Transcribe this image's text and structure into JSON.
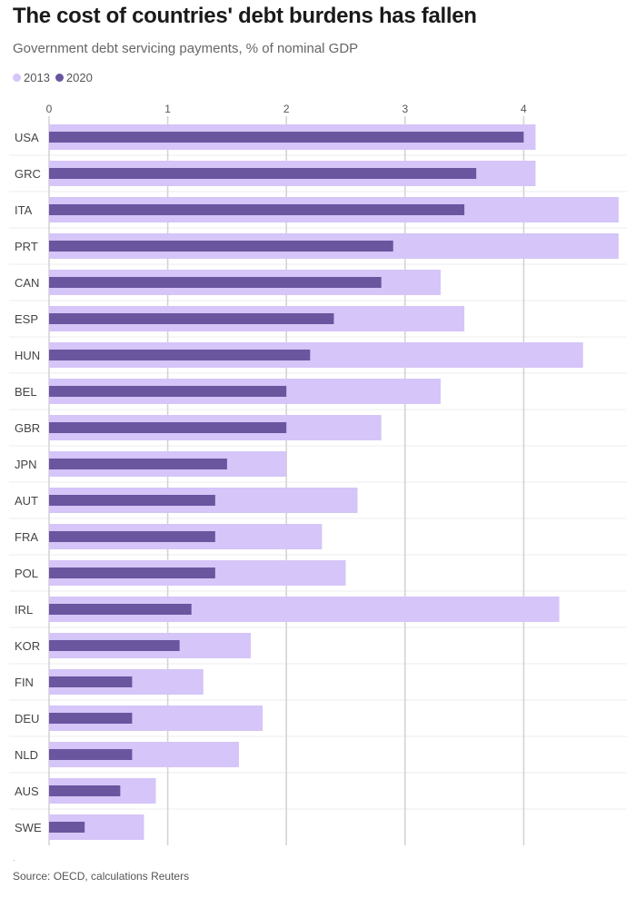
{
  "title": "The cost of countries' debt burdens has fallen",
  "subtitle": "Government debt servicing payments, % of nominal GDP",
  "legend": [
    {
      "label": "2013",
      "color": "#d5c5f8"
    },
    {
      "label": "2020",
      "color": "#6a559f"
    }
  ],
  "source": "Source: OECD, calculations Reuters",
  "footnote_mark": ".",
  "chart_data": {
    "type": "bar",
    "orientation": "horizontal",
    "categories": [
      "USA",
      "GRC",
      "ITA",
      "PRT",
      "CAN",
      "ESP",
      "HUN",
      "BEL",
      "GBR",
      "JPN",
      "AUT",
      "FRA",
      "POL",
      "IRL",
      "KOR",
      "FIN",
      "DEU",
      "NLD",
      "AUS",
      "SWE"
    ],
    "series": [
      {
        "name": "2013",
        "color": "#d5c5f8",
        "values": [
          4.1,
          4.1,
          4.8,
          4.8,
          3.3,
          3.5,
          4.5,
          3.3,
          2.8,
          2.0,
          2.6,
          2.3,
          2.5,
          4.3,
          1.7,
          1.3,
          1.8,
          1.6,
          0.9,
          0.8
        ]
      },
      {
        "name": "2020",
        "color": "#6a559f",
        "values": [
          4.0,
          3.6,
          3.5,
          2.9,
          2.8,
          2.4,
          2.2,
          2.0,
          2.0,
          1.5,
          1.4,
          1.4,
          1.4,
          1.2,
          1.1,
          0.7,
          0.7,
          0.7,
          0.6,
          0.3
        ]
      }
    ],
    "xticks": [
      0,
      1,
      2,
      3,
      4
    ],
    "xlim": [
      0,
      4.8
    ],
    "grid": true,
    "legend_position": "top-left"
  }
}
